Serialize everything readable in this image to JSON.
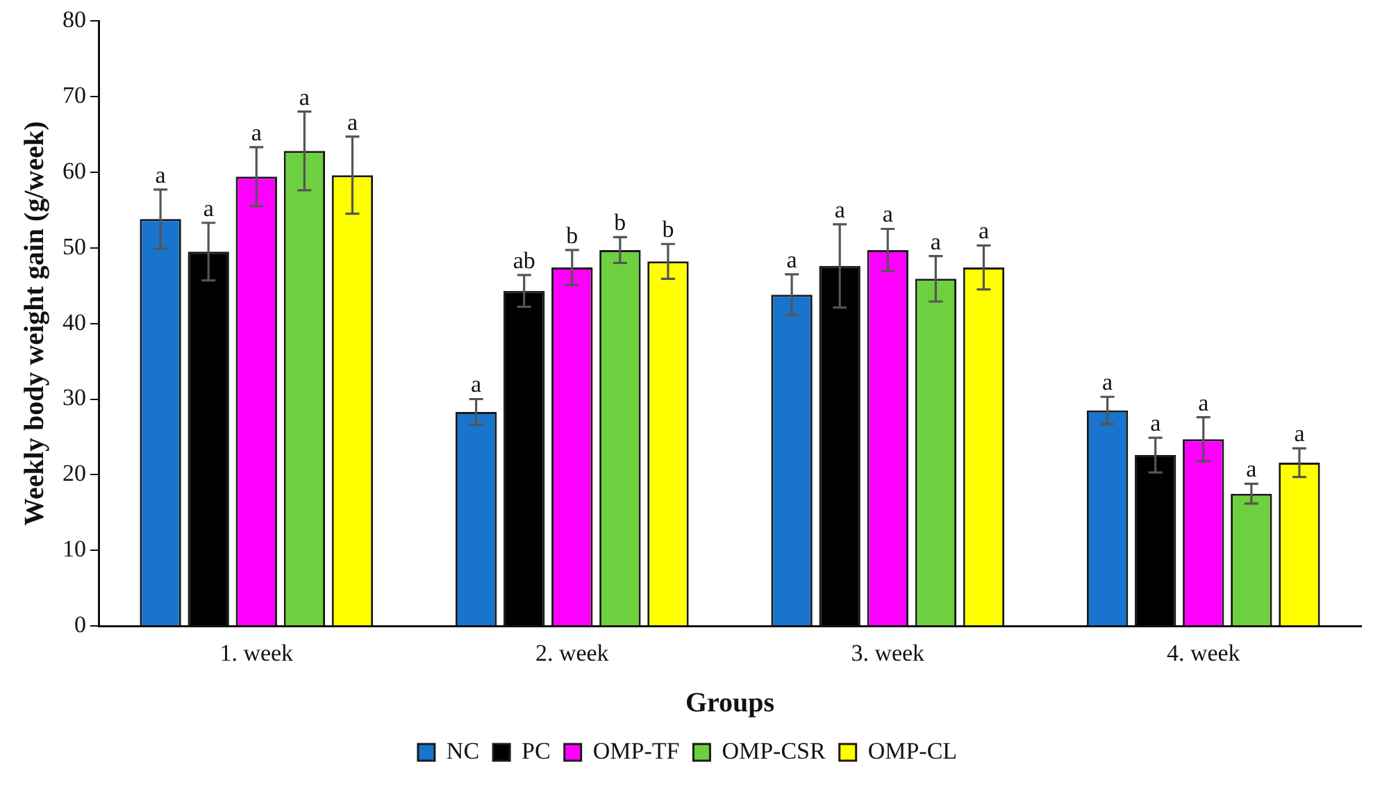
{
  "chart_data": {
    "type": "bar",
    "xlabel": "Groups",
    "ylabel": "Weekly body weight gain (g/week)",
    "categories": [
      "1. week",
      "2. week",
      "3. week",
      "4. week"
    ],
    "series": [
      {
        "name": "NC",
        "color": "#1874cd",
        "values": [
          53.8,
          28.3,
          43.8,
          28.5
        ],
        "errors": [
          3.9,
          1.7,
          2.7,
          1.8
        ],
        "value_labels": [
          "a",
          "a",
          "a",
          "a"
        ]
      },
      {
        "name": "PC",
        "color": "#000000",
        "values": [
          49.5,
          44.3,
          47.6,
          22.6
        ],
        "errors": [
          3.8,
          2.1,
          5.5,
          2.3
        ],
        "value_labels": [
          "a",
          "ab",
          "a",
          "a"
        ]
      },
      {
        "name": "OMP-TF",
        "color": "#ff00ff",
        "values": [
          59.4,
          47.4,
          49.7,
          24.7
        ],
        "errors": [
          3.9,
          2.3,
          2.8,
          2.9
        ],
        "value_labels": [
          "a",
          "b",
          "a",
          "a"
        ]
      },
      {
        "name": "OMP-CSR",
        "color": "#6dd03f",
        "values": [
          62.8,
          49.7,
          45.9,
          17.5
        ],
        "errors": [
          5.2,
          1.7,
          3.0,
          1.3
        ],
        "value_labels": [
          "a",
          "b",
          "a",
          "a"
        ]
      },
      {
        "name": "OMP-CL",
        "color": "#ffff00",
        "values": [
          59.6,
          48.2,
          47.4,
          21.6
        ],
        "errors": [
          5.1,
          2.3,
          2.9,
          1.9
        ],
        "value_labels": [
          "a",
          "b",
          "a",
          "a"
        ]
      }
    ],
    "ylim": [
      0,
      80
    ],
    "yticks": [
      0,
      10,
      20,
      30,
      40,
      50,
      60,
      70,
      80
    ],
    "grid": false,
    "legend": "bottom"
  }
}
